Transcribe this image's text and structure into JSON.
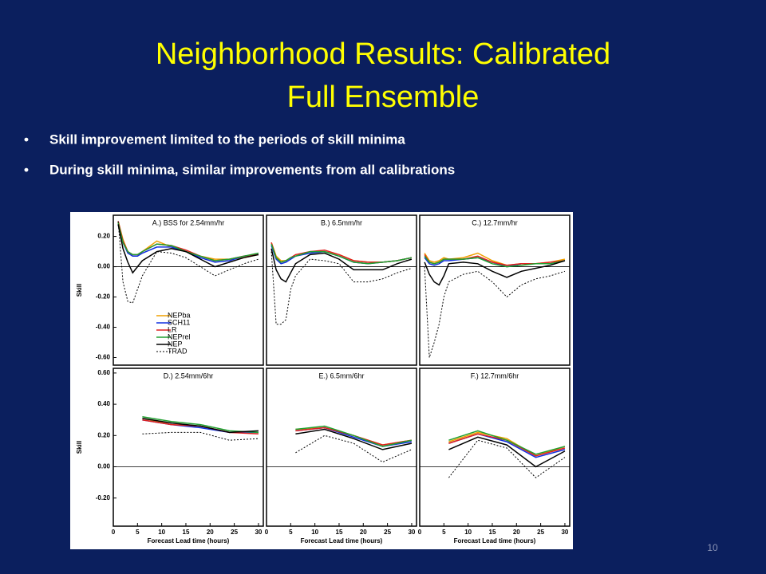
{
  "slide": {
    "title": [
      "Neighborhood Results: Calibrated",
      "Full Ensemble"
    ],
    "bullets": [
      "Skill improvement limited to the periods of skill minima",
      "During skill minima, similar improvements from all calibrations"
    ],
    "page_number": "10"
  },
  "chart_data": [
    {
      "type": "line",
      "title": "A.) BSS for 2.54mm/hr",
      "ylabel": "Skill",
      "legend": "lower center",
      "x": [
        1,
        2,
        3,
        4,
        5,
        6,
        9,
        12,
        15,
        18,
        21,
        24,
        27,
        30
      ],
      "xlim": [
        0,
        31
      ],
      "ylim": [
        -0.65,
        0.34
      ],
      "yticks": [
        {
          "value": -0.6,
          "label": "-0.60"
        },
        {
          "value": -0.4,
          "label": "-0.40"
        },
        {
          "value": -0.2,
          "label": "-0.20"
        },
        {
          "value": 0,
          "label": "0.00"
        },
        {
          "value": 0.2,
          "label": "0.20"
        }
      ],
      "series": [
        {
          "name": "NEPba",
          "color": "#f0a000",
          "values": [
            0.3,
            0.18,
            0.1,
            0.07,
            0.07,
            0.1,
            0.17,
            0.13,
            0.1,
            0.07,
            0.05,
            0.05,
            0.06,
            0.08
          ]
        },
        {
          "name": "SCH11",
          "color": "#1030e0",
          "values": [
            0.28,
            0.16,
            0.09,
            0.07,
            0.07,
            0.09,
            0.13,
            0.13,
            0.1,
            0.06,
            0.03,
            0.04,
            0.07,
            0.08
          ]
        },
        {
          "name": "LR",
          "color": "#e02020",
          "values": [
            0.3,
            0.17,
            0.1,
            0.08,
            0.08,
            0.1,
            0.15,
            0.14,
            0.11,
            0.07,
            0.04,
            0.05,
            0.07,
            0.08
          ]
        },
        {
          "name": "NEPrel",
          "color": "#20a030",
          "values": [
            0.29,
            0.16,
            0.1,
            0.08,
            0.08,
            0.1,
            0.15,
            0.14,
            0.1,
            0.07,
            0.04,
            0.05,
            0.07,
            0.09
          ]
        },
        {
          "name": "NEP",
          "color": "#000000",
          "values": [
            0.28,
            0.12,
            0.03,
            -0.04,
            0.0,
            0.04,
            0.1,
            0.12,
            0.1,
            0.05,
            0.0,
            0.03,
            0.06,
            0.08
          ]
        },
        {
          "name": "TRAD",
          "color": "#000000",
          "style": "dashed",
          "values": [
            0.3,
            -0.1,
            -0.23,
            -0.24,
            -0.15,
            -0.06,
            0.1,
            0.09,
            0.06,
            0.0,
            -0.06,
            -0.02,
            0.02,
            0.05
          ]
        }
      ]
    },
    {
      "type": "line",
      "title": "B.) 6.5mm/hr",
      "x": [
        1,
        2,
        3,
        4,
        5,
        6,
        9,
        12,
        15,
        18,
        21,
        24,
        27,
        30
      ],
      "xlim": [
        0,
        31
      ],
      "ylim": [
        -0.65,
        0.34
      ],
      "series": [
        {
          "color": "#f0a000",
          "values": [
            0.16,
            0.07,
            0.04,
            0.04,
            0.06,
            0.07,
            0.1,
            0.1,
            0.08,
            0.04,
            0.03,
            0.03,
            0.04,
            0.06
          ]
        },
        {
          "color": "#1030e0",
          "values": [
            0.14,
            0.05,
            0.02,
            0.03,
            0.05,
            0.07,
            0.09,
            0.1,
            0.07,
            0.03,
            0.02,
            0.03,
            0.04,
            0.06
          ]
        },
        {
          "color": "#e02020",
          "values": [
            0.16,
            0.06,
            0.03,
            0.04,
            0.06,
            0.08,
            0.1,
            0.11,
            0.08,
            0.04,
            0.03,
            0.03,
            0.04,
            0.06
          ]
        },
        {
          "color": "#20a030",
          "values": [
            0.15,
            0.06,
            0.03,
            0.04,
            0.06,
            0.07,
            0.1,
            0.1,
            0.07,
            0.03,
            0.02,
            0.03,
            0.04,
            0.06
          ]
        },
        {
          "color": "#000000",
          "values": [
            0.12,
            -0.02,
            -0.08,
            -0.1,
            -0.04,
            0.02,
            0.08,
            0.09,
            0.05,
            -0.02,
            -0.02,
            -0.02,
            0.02,
            0.05
          ]
        },
        {
          "color": "#000000",
          "style": "dashed",
          "values": [
            0.1,
            -0.38,
            -0.38,
            -0.35,
            -0.15,
            -0.06,
            0.05,
            0.04,
            0.02,
            -0.1,
            -0.1,
            -0.08,
            -0.04,
            -0.01
          ]
        }
      ]
    },
    {
      "type": "line",
      "title": "C.) 12.7mm/hr",
      "x": [
        1,
        2,
        3,
        4,
        5,
        6,
        9,
        12,
        15,
        18,
        21,
        24,
        27,
        30
      ],
      "xlim": [
        0,
        31
      ],
      "ylim": [
        -0.65,
        0.34
      ],
      "series": [
        {
          "color": "#f0a000",
          "values": [
            0.09,
            0.04,
            0.03,
            0.04,
            0.06,
            0.05,
            0.06,
            0.09,
            0.04,
            0.01,
            0.02,
            0.02,
            0.03,
            0.05
          ]
        },
        {
          "color": "#1030e0",
          "values": [
            0.06,
            0.02,
            0.01,
            0.02,
            0.04,
            0.04,
            0.05,
            0.06,
            0.03,
            0.0,
            0.02,
            0.02,
            0.02,
            0.04
          ]
        },
        {
          "color": "#e02020",
          "values": [
            0.08,
            0.03,
            0.02,
            0.03,
            0.05,
            0.05,
            0.05,
            0.07,
            0.03,
            0.01,
            0.02,
            0.02,
            0.03,
            0.04
          ]
        },
        {
          "color": "#20a030",
          "values": [
            0.07,
            0.03,
            0.02,
            0.03,
            0.05,
            0.05,
            0.05,
            0.06,
            0.02,
            0.0,
            0.01,
            0.02,
            0.02,
            0.04
          ]
        },
        {
          "color": "#000000",
          "values": [
            0.03,
            -0.05,
            -0.1,
            -0.12,
            -0.06,
            0.02,
            0.03,
            0.02,
            -0.03,
            -0.07,
            -0.03,
            -0.01,
            0.01,
            0.04
          ]
        },
        {
          "color": "#000000",
          "style": "dashed",
          "values": [
            0.0,
            -0.6,
            -0.5,
            -0.38,
            -0.2,
            -0.1,
            -0.05,
            -0.03,
            -0.1,
            -0.2,
            -0.12,
            -0.08,
            -0.06,
            -0.03
          ]
        }
      ]
    },
    {
      "type": "line",
      "title": "D.) 2.54mm/6hr",
      "ylabel": "Skill",
      "xlabel": "Forecast Lead time (hours)",
      "x": [
        6,
        12,
        18,
        24,
        30
      ],
      "xlim": [
        0,
        31
      ],
      "ylim": [
        -0.38,
        0.63
      ],
      "xticks": [
        0,
        5,
        10,
        15,
        20,
        25,
        30
      ],
      "yticks": [
        {
          "value": -0.2,
          "label": "-0.20"
        },
        {
          "value": 0,
          "label": "0.00"
        },
        {
          "value": 0.2,
          "label": "0.20"
        },
        {
          "value": 0.4,
          "label": "0.40"
        },
        {
          "value": 0.6,
          "label": "0.60"
        }
      ],
      "series": [
        {
          "color": "#f0a000",
          "values": [
            0.31,
            0.27,
            0.26,
            0.22,
            0.22
          ]
        },
        {
          "color": "#1030e0",
          "values": [
            0.3,
            0.27,
            0.25,
            0.22,
            0.22
          ]
        },
        {
          "color": "#e02020",
          "values": [
            0.3,
            0.27,
            0.26,
            0.22,
            0.21
          ]
        },
        {
          "color": "#20a030",
          "values": [
            0.32,
            0.29,
            0.27,
            0.23,
            0.22
          ]
        },
        {
          "color": "#000000",
          "values": [
            0.31,
            0.28,
            0.26,
            0.22,
            0.23
          ]
        },
        {
          "color": "#000000",
          "style": "dashed",
          "values": [
            0.21,
            0.22,
            0.22,
            0.17,
            0.18
          ]
        }
      ]
    },
    {
      "type": "line",
      "title": "E.) 6.5mm/6hr",
      "xlabel": "Forecast Lead time (hours)",
      "x": [
        6,
        12,
        18,
        24,
        30
      ],
      "xlim": [
        0,
        31
      ],
      "ylim": [
        -0.38,
        0.63
      ],
      "xticks": [
        0,
        5,
        10,
        15,
        20,
        25,
        30
      ],
      "series": [
        {
          "color": "#f0a000",
          "values": [
            0.24,
            0.25,
            0.2,
            0.14,
            0.17
          ]
        },
        {
          "color": "#1030e0",
          "values": [
            0.23,
            0.25,
            0.19,
            0.13,
            0.16
          ]
        },
        {
          "color": "#e02020",
          "values": [
            0.23,
            0.25,
            0.2,
            0.14,
            0.17
          ]
        },
        {
          "color": "#20a030",
          "values": [
            0.24,
            0.26,
            0.2,
            0.13,
            0.17
          ]
        },
        {
          "color": "#000000",
          "values": [
            0.21,
            0.24,
            0.18,
            0.11,
            0.15
          ]
        },
        {
          "color": "#000000",
          "style": "dashed",
          "values": [
            0.09,
            0.2,
            0.15,
            0.03,
            0.11
          ]
        }
      ]
    },
    {
      "type": "line",
      "title": "F.) 12.7mm/6hr",
      "xlabel": "Forecast Lead time (hours)",
      "x": [
        6,
        12,
        18,
        24,
        30
      ],
      "xlim": [
        0,
        31
      ],
      "ylim": [
        -0.38,
        0.63
      ],
      "xticks": [
        0,
        5,
        10,
        15,
        20,
        25,
        30
      ],
      "series": [
        {
          "color": "#f0a000",
          "values": [
            0.16,
            0.22,
            0.18,
            0.07,
            0.13
          ]
        },
        {
          "color": "#1030e0",
          "values": [
            0.15,
            0.21,
            0.16,
            0.06,
            0.11
          ]
        },
        {
          "color": "#e02020",
          "values": [
            0.15,
            0.21,
            0.17,
            0.07,
            0.12
          ]
        },
        {
          "color": "#20a030",
          "values": [
            0.17,
            0.23,
            0.17,
            0.08,
            0.13
          ]
        },
        {
          "color": "#000000",
          "values": [
            0.11,
            0.19,
            0.14,
            0.0,
            0.1
          ]
        },
        {
          "color": "#000000",
          "style": "dashed",
          "values": [
            -0.07,
            0.17,
            0.12,
            -0.07,
            0.06
          ]
        }
      ]
    }
  ]
}
